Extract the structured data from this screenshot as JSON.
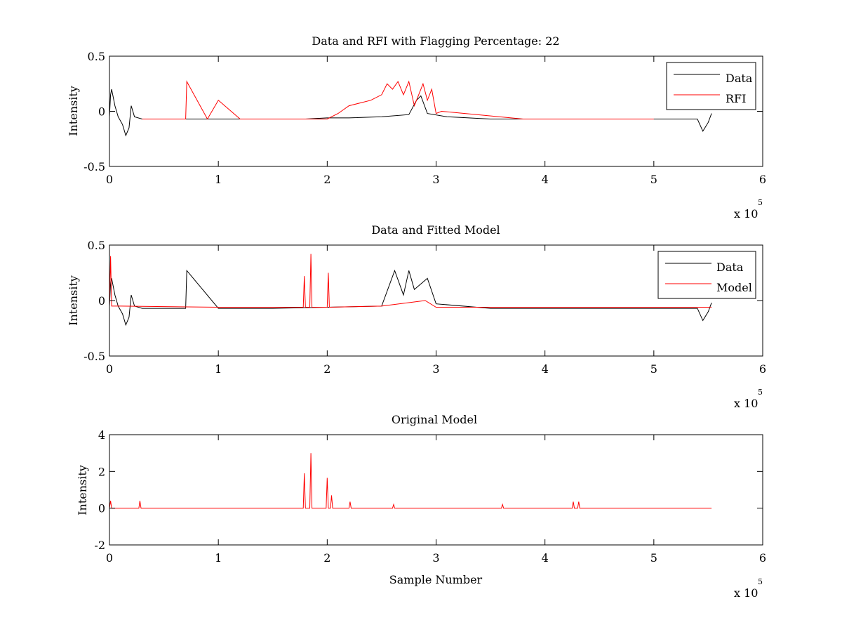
{
  "figure": {
    "background": "#ffffff"
  },
  "colors": {
    "data": "#000000",
    "rfi": "#ff0000",
    "model": "#ff0000",
    "axes": "#000000"
  },
  "chart_data": [
    {
      "type": "line",
      "title": "Data and RFI with Flagging Percentage: 22",
      "xlabel": "",
      "ylabel": "Intensity",
      "xlim": [
        0,
        600000
      ],
      "ylim": [
        -0.5,
        0.5
      ],
      "xticks": [
        0,
        100000,
        200000,
        300000,
        400000,
        500000,
        600000
      ],
      "xtick_labels": [
        "0",
        "1",
        "2",
        "3",
        "4",
        "5",
        "6"
      ],
      "yticks": [
        -0.5,
        0,
        0.5
      ],
      "ytick_labels": [
        "-0.5",
        "0",
        "0.5"
      ],
      "x_multiplier": {
        "base": "x 10",
        "exponent": "5"
      },
      "legend": {
        "placement": "top-right",
        "entries": [
          {
            "label": "Data",
            "color": "#000000"
          },
          {
            "label": "RFI",
            "color": "#ff0000"
          }
        ]
      },
      "series": [
        {
          "name": "Data",
          "color": "#000000",
          "x": [
            0,
            1000,
            2000,
            5000,
            8000,
            12000,
            15000,
            18000,
            20000,
            23000,
            30000,
            50000,
            80000,
            100000,
            130000,
            160000,
            180000,
            200000,
            220000,
            250000,
            275000,
            282000,
            286000,
            292000,
            310000,
            350000,
            400000,
            450000,
            500000,
            540000,
            545000,
            550000,
            553000
          ],
          "y": [
            -0.05,
            0.15,
            0.2,
            0.05,
            -0.05,
            -0.12,
            -0.22,
            -0.15,
            0.05,
            -0.05,
            -0.07,
            -0.07,
            -0.07,
            -0.07,
            -0.07,
            -0.07,
            -0.07,
            -0.06,
            -0.06,
            -0.05,
            -0.03,
            0.1,
            0.14,
            -0.02,
            -0.05,
            -0.07,
            -0.07,
            -0.07,
            -0.07,
            -0.07,
            -0.18,
            -0.1,
            -0.02
          ]
        },
        {
          "name": "RFI",
          "color": "#ff0000",
          "x": [
            30000,
            50000,
            70000,
            71000,
            90000,
            100000,
            120000,
            150000,
            200000,
            210000,
            220000,
            240000,
            250000,
            255000,
            260000,
            265000,
            270000,
            275000,
            280000,
            288000,
            292000,
            296000,
            300000,
            305000,
            380000,
            400000,
            450000,
            490000,
            500000
          ],
          "y": [
            -0.07,
            -0.07,
            -0.07,
            0.27,
            -0.07,
            0.1,
            -0.07,
            -0.07,
            -0.07,
            -0.02,
            0.05,
            0.1,
            0.15,
            0.25,
            0.2,
            0.27,
            0.15,
            0.27,
            0.05,
            0.25,
            0.1,
            0.2,
            -0.02,
            0.0,
            -0.07,
            -0.07,
            -0.07,
            -0.07,
            -0.07
          ]
        }
      ]
    },
    {
      "type": "line",
      "title": "Data and Fitted Model",
      "xlabel": "",
      "ylabel": "Intensity",
      "xlim": [
        0,
        600000
      ],
      "ylim": [
        -0.5,
        0.5
      ],
      "xticks": [
        0,
        100000,
        200000,
        300000,
        400000,
        500000,
        600000
      ],
      "xtick_labels": [
        "0",
        "1",
        "2",
        "3",
        "4",
        "5",
        "6"
      ],
      "yticks": [
        -0.5,
        0,
        0.5
      ],
      "ytick_labels": [
        "-0.5",
        "0",
        "0.5"
      ],
      "x_multiplier": {
        "base": "x 10",
        "exponent": "5"
      },
      "legend": {
        "placement": "top-right",
        "entries": [
          {
            "label": "Data",
            "color": "#000000"
          },
          {
            "label": "Model",
            "color": "#ff0000"
          }
        ]
      },
      "series": [
        {
          "name": "Data",
          "color": "#000000",
          "x": [
            0,
            1000,
            2000,
            5000,
            8000,
            12000,
            15000,
            18000,
            20000,
            23000,
            30000,
            50000,
            70000,
            71000,
            100000,
            150000,
            200000,
            250000,
            262000,
            270000,
            275000,
            280000,
            292000,
            300000,
            350000,
            400000,
            450000,
            500000,
            540000,
            545000,
            550000,
            553000
          ],
          "y": [
            -0.05,
            0.15,
            0.2,
            0.05,
            -0.05,
            -0.12,
            -0.22,
            -0.15,
            0.05,
            -0.05,
            -0.07,
            -0.07,
            -0.07,
            0.27,
            -0.07,
            -0.07,
            -0.06,
            -0.05,
            0.27,
            0.05,
            0.27,
            0.1,
            0.2,
            -0.03,
            -0.07,
            -0.07,
            -0.07,
            -0.07,
            -0.07,
            -0.18,
            -0.1,
            -0.02
          ]
        },
        {
          "name": "Model",
          "color": "#ff0000",
          "x": [
            0,
            1000,
            2000,
            10000,
            100000,
            178000,
            179000,
            180000,
            184000,
            185000,
            186000,
            200000,
            201000,
            202000,
            250000,
            290000,
            300000,
            400000,
            500000,
            553000
          ],
          "y": [
            -0.05,
            0.4,
            -0.05,
            -0.05,
            -0.06,
            -0.06,
            0.22,
            -0.06,
            -0.06,
            0.42,
            -0.06,
            -0.06,
            0.25,
            -0.06,
            -0.05,
            0.0,
            -0.06,
            -0.06,
            -0.06,
            -0.06
          ]
        }
      ]
    },
    {
      "type": "line",
      "title": "Original Model",
      "xlabel": "Sample Number",
      "ylabel": "Intensity",
      "xlim": [
        0,
        600000
      ],
      "ylim": [
        -2,
        4
      ],
      "xticks": [
        0,
        100000,
        200000,
        300000,
        400000,
        500000,
        600000
      ],
      "xtick_labels": [
        "0",
        "1",
        "2",
        "3",
        "4",
        "5",
        "6"
      ],
      "yticks": [
        -2,
        0,
        2,
        4
      ],
      "ytick_labels": [
        "-2",
        "0",
        "2",
        "4"
      ],
      "x_multiplier": {
        "base": "x 10",
        "exponent": "5"
      },
      "legend": null,
      "series": [
        {
          "name": "",
          "color": "#ff0000",
          "x": [
            0,
            1000,
            2000,
            27000,
            28000,
            29000,
            178000,
            179000,
            180000,
            184000,
            185000,
            186000,
            199000,
            200000,
            201000,
            203000,
            204000,
            205000,
            220000,
            221000,
            222000,
            260000,
            261000,
            262000,
            360000,
            361000,
            362000,
            425000,
            426000,
            427000,
            430000,
            431000,
            432000,
            553000
          ],
          "y": [
            0,
            0.4,
            0,
            0,
            0.4,
            0,
            0,
            1.9,
            0,
            0,
            3.0,
            0,
            0,
            1.65,
            0,
            0,
            0.7,
            0,
            0,
            0.35,
            0,
            0,
            0.2,
            0,
            0,
            0.2,
            0,
            0,
            0.35,
            0,
            0,
            0.35,
            0,
            0
          ]
        }
      ]
    }
  ]
}
